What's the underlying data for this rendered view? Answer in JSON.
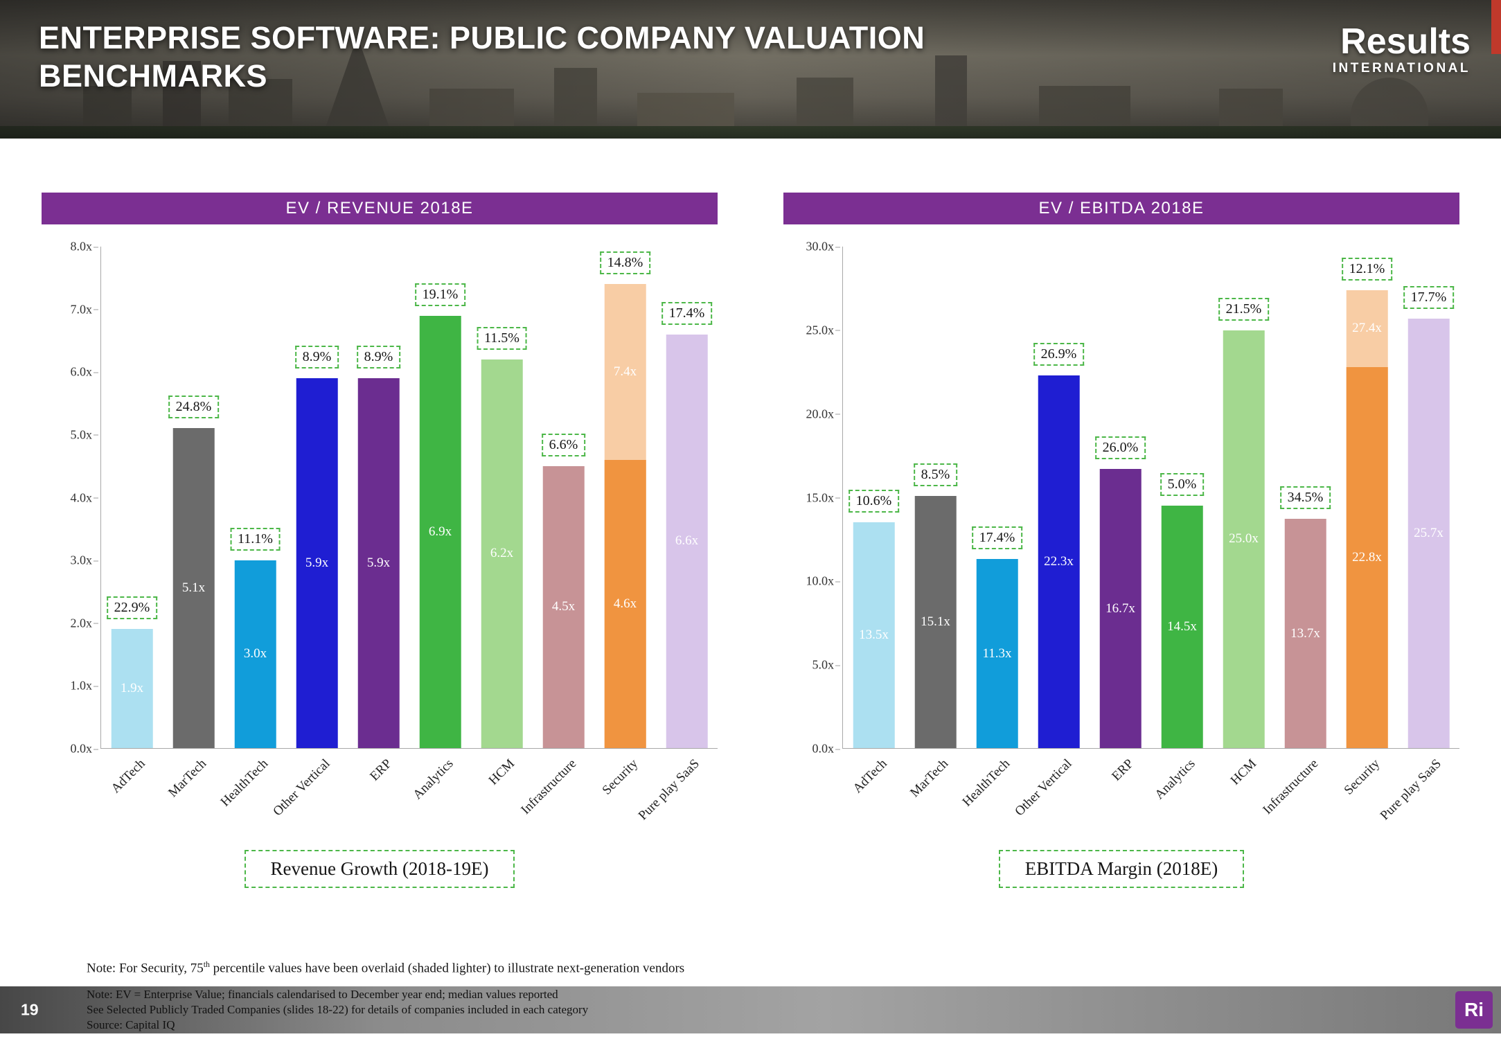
{
  "header": {
    "title_line1": "ENTERPRISE SOFTWARE: PUBLIC COMPANY VALUATION",
    "title_line2": "BENCHMARKS",
    "logo_primary": "Results",
    "logo_secondary": "INTERNATIONAL"
  },
  "theme": {
    "accent_purple": "#7b2f92",
    "callout_green": "#4cb748"
  },
  "chart_data": [
    {
      "type": "bar",
      "title": "EV / REVENUE 2018E",
      "legend": "Revenue Growth (2018-19E)",
      "ylim": [
        0,
        8
      ],
      "ytick_labels": [
        "8.0x",
        "7.0x",
        "6.0x",
        "5.0x",
        "4.0x",
        "3.0x",
        "2.0x",
        "1.0x",
        "0.0x"
      ],
      "categories": [
        "AdTech",
        "MarTech",
        "HealthTech",
        "Other Vertical",
        "ERP",
        "Analytics",
        "HCM",
        "Infrastructure",
        "Security",
        "Pure play SaaS"
      ],
      "values": [
        1.9,
        5.1,
        3.0,
        5.9,
        5.9,
        6.9,
        6.2,
        4.5,
        4.6,
        6.6
      ],
      "bar_labels": [
        "1.9x",
        "5.1x",
        "3.0x",
        "5.9x",
        "5.9x",
        "6.9x",
        "6.2x",
        "4.5x",
        "4.6x",
        "6.6x"
      ],
      "callouts": [
        "22.9%",
        "24.8%",
        "11.1%",
        "8.9%",
        "8.9%",
        "19.1%",
        "11.5%",
        "6.6%",
        "14.8%",
        "17.4%"
      ],
      "colors": [
        "#ace0f1",
        "#6b6b6b",
        "#119dda",
        "#1f1ed2",
        "#6b2d90",
        "#3fb544",
        "#a3d88f",
        "#c79396",
        "#f09440",
        "#d8c5ea"
      ],
      "overlay": {
        "index": 8,
        "value": 7.4,
        "label": "7.4x",
        "color": "#f8cda5"
      }
    },
    {
      "type": "bar",
      "title": "EV / EBITDA 2018E",
      "legend": "EBITDA Margin (2018E)",
      "ylim": [
        0,
        30
      ],
      "ytick_labels": [
        "30.0x",
        "25.0x",
        "20.0x",
        "15.0x",
        "10.0x",
        "5.0x",
        "0.0x"
      ],
      "categories": [
        "AdTech",
        "MarTech",
        "HealthTech",
        "Other Vertical",
        "ERP",
        "Analytics",
        "HCM",
        "Infrastructure",
        "Security",
        "Pure play SaaS"
      ],
      "values": [
        13.5,
        15.1,
        11.3,
        22.3,
        16.7,
        14.5,
        25.0,
        13.7,
        22.8,
        25.7
      ],
      "bar_labels": [
        "13.5x",
        "15.1x",
        "11.3x",
        "22.3x",
        "16.7x",
        "14.5x",
        "25.0x",
        "13.7x",
        "22.8x",
        "25.7x"
      ],
      "callouts": [
        "10.6%",
        "8.5%",
        "17.4%",
        "26.9%",
        "26.0%",
        "5.0%",
        "21.5%",
        "34.5%",
        "12.1%",
        "17.7%"
      ],
      "colors": [
        "#ace0f1",
        "#6b6b6b",
        "#119dda",
        "#1f1ed2",
        "#6b2d90",
        "#3fb544",
        "#a3d88f",
        "#c79396",
        "#f09440",
        "#d8c5ea"
      ],
      "overlay": {
        "index": 8,
        "value": 27.4,
        "label": "27.4x",
        "color": "#f8cda5"
      }
    }
  ],
  "notes": {
    "note1_prefix": "Note: For Security, 75",
    "note1_sup": "th",
    "note1_suffix": " percentile values have been overlaid (shaded lighter) to illustrate next-generation vendors",
    "note2": "Note: EV = Enterprise Value; financials calendarised to December year end; median values reported",
    "note3": "See Selected Publicly Traded Companies (slides 18-22) for details of companies included in each category",
    "note4": "Source: Capital IQ"
  },
  "footer": {
    "page_number": "19",
    "logo": "Ri"
  }
}
